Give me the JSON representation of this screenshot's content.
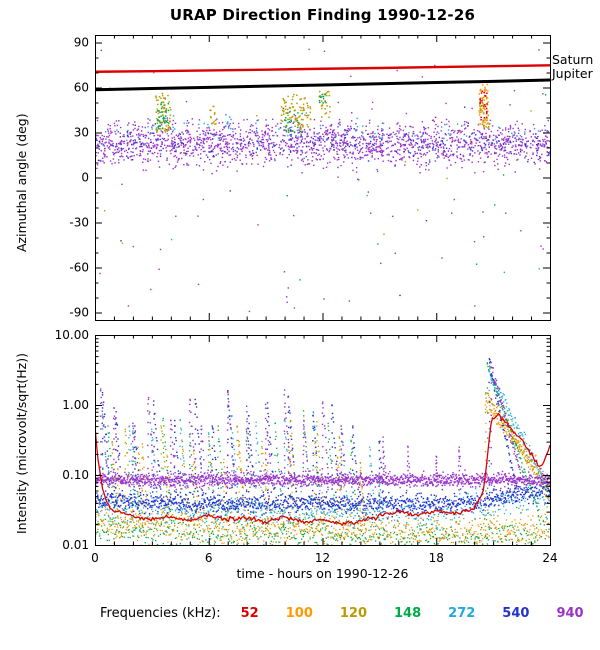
{
  "title": "URAP Direction Finding  1990-12-26",
  "legend": {
    "label": "Frequencies (kHz):",
    "items": [
      {
        "label": "52",
        "color": "#dd0000"
      },
      {
        "label": "100",
        "color": "#ff9900"
      },
      {
        "label": "120",
        "color": "#bb9900"
      },
      {
        "label": "148",
        "color": "#00aa44"
      },
      {
        "label": "272",
        "color": "#22aadd"
      },
      {
        "label": "540",
        "color": "#2233cc"
      },
      {
        "label": "940",
        "color": "#9933cc"
      }
    ]
  },
  "chart_data": [
    {
      "type": "scatter",
      "panel": "azimuth",
      "ylabel": "Azimuthal angle (deg)",
      "xlim": [
        0,
        24
      ],
      "ylim": [
        -95,
        95
      ],
      "xticks": [
        0,
        6,
        12,
        18,
        24
      ],
      "yticks": [
        90,
        60,
        30,
        0,
        -30,
        -60,
        -90
      ],
      "ytick_minor_step": 10,
      "lines": [
        {
          "name": "Saturn",
          "color": "#dd0000",
          "width": 2.4,
          "points": [
            [
              0,
              70.5
            ],
            [
              3,
              70.9
            ],
            [
              6,
              71.4
            ],
            [
              9,
              71.9
            ],
            [
              12,
              72.5
            ],
            [
              15,
              73.0
            ],
            [
              18,
              73.6
            ],
            [
              21,
              74.2
            ],
            [
              24,
              74.8
            ]
          ]
        },
        {
          "name": "Jupiter",
          "color": "#000000",
          "width": 3,
          "points": [
            [
              0,
              58.5
            ],
            [
              3,
              59.3
            ],
            [
              6,
              60.1
            ],
            [
              9,
              60.9
            ],
            [
              12,
              61.7
            ],
            [
              15,
              62.5
            ],
            [
              18,
              63.3
            ],
            [
              21,
              64.1
            ],
            [
              24,
              65.0
            ]
          ]
        }
      ],
      "bands": [
        {
          "freq": "940",
          "color": "#9933cc",
          "center": 24,
          "spread": 6.5,
          "n": 1600,
          "t0": 0,
          "t1": 24
        },
        {
          "freq": "940",
          "color": "#9933cc",
          "center": 13,
          "spread": 5,
          "n": 220,
          "t0": 0,
          "t1": 24
        },
        {
          "freq": "540",
          "color": "#2233cc",
          "center": 22,
          "spread": 5,
          "n": 260,
          "t0": 0,
          "t1": 24
        },
        {
          "freq": "272",
          "color": "#22aadd",
          "center": 30,
          "spread": 4,
          "n": 90,
          "t0": 0,
          "t1": 24
        }
      ],
      "clusters": [
        {
          "freq": "120",
          "color": "#bb9900",
          "t0": 3.2,
          "t1": 4.0,
          "vmin": 30,
          "vmax": 56,
          "n": 70
        },
        {
          "freq": "148",
          "color": "#00aa44",
          "t0": 3.3,
          "t1": 3.9,
          "vmin": 32,
          "vmax": 50,
          "n": 35
        },
        {
          "freq": "120",
          "color": "#bb9900",
          "t0": 6.0,
          "t1": 6.4,
          "vmin": 35,
          "vmax": 48,
          "n": 15
        },
        {
          "freq": "272",
          "color": "#22aadd",
          "t0": 6.9,
          "t1": 7.2,
          "vmin": 32,
          "vmax": 42,
          "n": 10
        },
        {
          "freq": "120",
          "color": "#bb9900",
          "t0": 9.8,
          "t1": 11.4,
          "vmin": 32,
          "vmax": 56,
          "n": 90
        },
        {
          "freq": "148",
          "color": "#00aa44",
          "t0": 10.0,
          "t1": 11.0,
          "vmin": 30,
          "vmax": 45,
          "n": 25
        },
        {
          "freq": "120",
          "color": "#bb9900",
          "t0": 11.8,
          "t1": 12.4,
          "vmin": 40,
          "vmax": 58,
          "n": 25
        },
        {
          "freq": "148",
          "color": "#00aa44",
          "t0": 11.8,
          "t1": 12.2,
          "vmin": 48,
          "vmax": 58,
          "n": 10
        },
        {
          "freq": "100",
          "color": "#ff9900",
          "t0": 20.25,
          "t1": 20.75,
          "vmin": 35,
          "vmax": 62,
          "n": 55
        },
        {
          "freq": "52",
          "color": "#dd0000",
          "t0": 20.3,
          "t1": 20.7,
          "vmin": 38,
          "vmax": 58,
          "n": 25
        },
        {
          "freq": "120",
          "color": "#bb9900",
          "t0": 20.3,
          "t1": 20.8,
          "vmin": 33,
          "vmax": 50,
          "n": 20
        }
      ],
      "outliers": [
        {
          "color": "#9933cc",
          "n": 70,
          "vmin": -92,
          "vmax": 90
        },
        {
          "color": "#22aadd",
          "n": 10,
          "vmin": -80,
          "vmax": 85
        },
        {
          "color": "#00aa44",
          "n": 8,
          "vmin": -70,
          "vmax": 80
        },
        {
          "color": "#bb9900",
          "n": 8,
          "vmin": -60,
          "vmax": 80
        },
        {
          "color": "#2233cc",
          "n": 6,
          "vmin": -80,
          "vmax": 60
        },
        {
          "color": "#dd0000",
          "n": 4,
          "vmin": -50,
          "vmax": 55
        }
      ]
    },
    {
      "type": "scatter",
      "panel": "intensity",
      "ylabel": "Intensity (microvolt/sqrt(Hz))",
      "xlabel": "time - hours on 1990-12-26",
      "yscale": "log",
      "xlim": [
        0,
        24
      ],
      "ylim": [
        0.01,
        10
      ],
      "xticks": [
        0,
        6,
        12,
        18,
        24
      ],
      "yticks": [
        {
          "v": 10,
          "label": "10.00"
        },
        {
          "v": 1,
          "label": "1.00"
        },
        {
          "v": 0.1,
          "label": "0.10"
        },
        {
          "v": 0.01,
          "label": "0.01"
        }
      ],
      "series": [
        {
          "freq": "100",
          "color": "#ff9900",
          "draw": "dots",
          "step": 0.05,
          "jitter": 0.12,
          "size": 1.3,
          "base": [
            [
              0,
              0.02
            ],
            [
              6,
              0.017
            ],
            [
              12,
              0.015
            ],
            [
              18,
              0.013
            ],
            [
              24,
              0.016
            ]
          ],
          "spikes": [
            [
              1.2,
              0.12
            ],
            [
              2.3,
              0.25
            ],
            [
              3.8,
              0.18
            ],
            [
              5.2,
              0.2
            ],
            [
              6.8,
              0.15
            ],
            [
              7.6,
              0.3
            ],
            [
              9.0,
              0.2
            ],
            [
              10.2,
              0.25
            ],
            [
              11.6,
              0.3
            ],
            [
              12.8,
              0.18
            ],
            [
              14.0,
              0.1
            ],
            [
              20.6,
              1.0,
              1.3
            ]
          ]
        },
        {
          "freq": "120",
          "color": "#bb9900",
          "draw": "dots",
          "step": 0.05,
          "jitter": 0.12,
          "size": 1.3,
          "base": [
            [
              0,
              0.022
            ],
            [
              6,
              0.019
            ],
            [
              12,
              0.017
            ],
            [
              18,
              0.015
            ],
            [
              24,
              0.018
            ]
          ],
          "spikes": [
            [
              0.9,
              0.3
            ],
            [
              1.6,
              0.45
            ],
            [
              2.5,
              0.25
            ],
            [
              3.5,
              0.5
            ],
            [
              4.6,
              0.3
            ],
            [
              6.0,
              0.35
            ],
            [
              7.5,
              0.5
            ],
            [
              8.8,
              0.3
            ],
            [
              10.3,
              0.6
            ],
            [
              11.7,
              0.5
            ],
            [
              12.9,
              0.35
            ],
            [
              14.0,
              0.15
            ],
            [
              20.6,
              1.5,
              1.0
            ]
          ]
        },
        {
          "freq": "148",
          "color": "#00aa44",
          "draw": "dots",
          "step": 0.05,
          "jitter": 0.12,
          "size": 1.3,
          "base": [
            [
              0,
              0.016
            ],
            [
              6,
              0.014
            ],
            [
              12,
              0.013
            ],
            [
              18,
              0.012
            ],
            [
              24,
              0.013
            ]
          ],
          "spikes": [
            [
              0.7,
              0.5
            ],
            [
              2.0,
              0.4
            ],
            [
              3.6,
              0.6
            ],
            [
              5.0,
              0.35
            ],
            [
              6.5,
              0.5
            ],
            [
              8.0,
              0.45
            ],
            [
              9.5,
              0.55
            ],
            [
              11.0,
              0.7
            ],
            [
              12.3,
              0.5
            ],
            [
              13.5,
              0.3
            ],
            [
              15.0,
              0.1
            ],
            [
              20.7,
              4.0,
              0.55
            ]
          ]
        },
        {
          "freq": "272",
          "color": "#22aadd",
          "draw": "dots",
          "step": 0.04,
          "jitter": 0.1,
          "size": 1.3,
          "base": [
            [
              0,
              0.035
            ],
            [
              6,
              0.03
            ],
            [
              12,
              0.028
            ],
            [
              18,
              0.03
            ],
            [
              24,
              0.05
            ]
          ],
          "spikes": [
            [
              0.4,
              0.7
            ],
            [
              1.8,
              0.5
            ],
            [
              3.0,
              0.45
            ],
            [
              4.5,
              0.6
            ],
            [
              6.0,
              0.4
            ],
            [
              7.2,
              0.7
            ],
            [
              8.5,
              0.5
            ],
            [
              10.0,
              0.6
            ],
            [
              11.5,
              0.8
            ],
            [
              13.0,
              0.45
            ],
            [
              14.5,
              0.25
            ],
            [
              20.8,
              3.0,
              0.8
            ]
          ]
        },
        {
          "freq": "540",
          "color": "#2233cc",
          "draw": "dots",
          "step": 0.02,
          "jitter": 0.07,
          "size": 1.4,
          "base": [
            [
              0,
              0.045
            ],
            [
              4,
              0.04
            ],
            [
              8,
              0.038
            ],
            [
              12,
              0.04
            ],
            [
              16,
              0.038
            ],
            [
              20,
              0.04
            ],
            [
              24,
              0.065
            ]
          ],
          "spikes": [
            [
              0.4,
              1.5
            ],
            [
              1.1,
              0.8
            ],
            [
              2.1,
              0.5
            ],
            [
              3.1,
              1.0
            ],
            [
              4.2,
              0.6
            ],
            [
              5.3,
              1.2
            ],
            [
              6.2,
              0.5
            ],
            [
              7.0,
              1.6
            ],
            [
              8.1,
              0.7
            ],
            [
              9.1,
              0.9
            ],
            [
              10.2,
              1.3
            ],
            [
              11.5,
              0.7
            ],
            [
              12.5,
              1.0
            ],
            [
              13.6,
              0.5
            ],
            [
              15.0,
              0.3
            ],
            [
              20.8,
              4.0,
              0.35
            ]
          ]
        },
        {
          "freq": "940",
          "color": "#9933cc",
          "draw": "dots",
          "step": 0.015,
          "jitter": 0.05,
          "size": 1.4,
          "base": [
            [
              0,
              0.085
            ],
            [
              24,
              0.085
            ]
          ],
          "spikes": [
            [
              0.3,
              1.6
            ],
            [
              1.0,
              0.9
            ],
            [
              2.0,
              0.5
            ],
            [
              2.8,
              1.2
            ],
            [
              4.0,
              0.6
            ],
            [
              5.0,
              1.2
            ],
            [
              5.6,
              0.5
            ],
            [
              7.0,
              1.5
            ],
            [
              8.0,
              0.8
            ],
            [
              9.0,
              0.9
            ],
            [
              10.0,
              1.4
            ],
            [
              11.0,
              0.6
            ],
            [
              12.0,
              1.1
            ],
            [
              13.0,
              0.5
            ],
            [
              15.2,
              0.3
            ],
            [
              16.5,
              0.25
            ],
            [
              18.0,
              0.18
            ],
            [
              19.2,
              0.25
            ],
            [
              20.9,
              3.5,
              0.45
            ]
          ]
        },
        {
          "freq": "52",
          "color": "#dd0000",
          "draw": "line",
          "width": 1.3,
          "base": [
            [
              0,
              0.5
            ],
            [
              0.15,
              0.18
            ],
            [
              0.4,
              0.06
            ],
            [
              0.8,
              0.032
            ],
            [
              2,
              0.026
            ],
            [
              3,
              0.023
            ],
            [
              4,
              0.026
            ],
            [
              5,
              0.022
            ],
            [
              6,
              0.027
            ],
            [
              7,
              0.023
            ],
            [
              8,
              0.025
            ],
            [
              9,
              0.021
            ],
            [
              10,
              0.026
            ],
            [
              11,
              0.021
            ],
            [
              12,
              0.023
            ],
            [
              13,
              0.02
            ],
            [
              14,
              0.022
            ],
            [
              15,
              0.026
            ],
            [
              16,
              0.029
            ],
            [
              17,
              0.027
            ],
            [
              18,
              0.031
            ],
            [
              19,
              0.029
            ],
            [
              20,
              0.033
            ],
            [
              20.5,
              0.06
            ],
            [
              20.9,
              0.6
            ],
            [
              21.3,
              0.75
            ],
            [
              22,
              0.45
            ],
            [
              22.8,
              0.25
            ],
            [
              23.5,
              0.12
            ],
            [
              24,
              0.26
            ]
          ],
          "spikes": []
        }
      ]
    }
  ]
}
